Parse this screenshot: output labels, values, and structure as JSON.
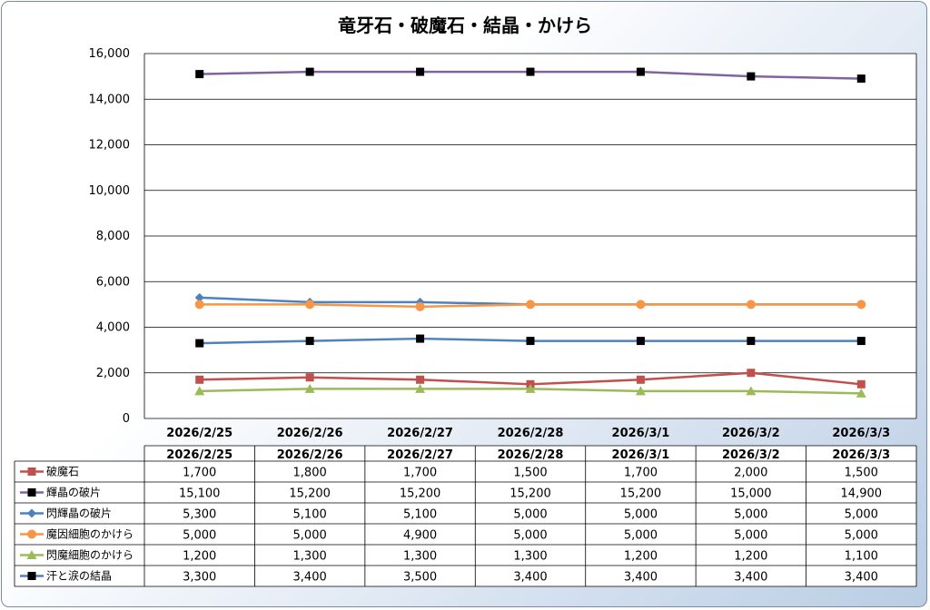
{
  "chart_data": {
    "type": "line",
    "title": "竜牙石・破魔石・結晶・かけら",
    "categories": [
      "2026/2/25",
      "2026/2/26",
      "2026/2/27",
      "2026/2/28",
      "2026/3/1",
      "2026/3/2",
      "2026/3/3"
    ],
    "ylim": [
      0,
      16000
    ],
    "yticks": [
      0,
      2000,
      4000,
      6000,
      8000,
      10000,
      12000,
      14000,
      16000
    ],
    "ytick_labels": [
      "0",
      "2,000",
      "4,000",
      "6,000",
      "8,000",
      "10,000",
      "12,000",
      "14,000",
      "16,000"
    ],
    "grid": true,
    "legend": "data-table",
    "series": [
      {
        "name": "破魔石",
        "color": "#c0504d",
        "marker": "square",
        "values": [
          1700,
          1800,
          1700,
          1500,
          1700,
          2000,
          1500
        ],
        "labels": [
          "1,700",
          "1,800",
          "1,700",
          "1,500",
          "1,700",
          "2,000",
          "1,500"
        ]
      },
      {
        "name": "輝晶の破片",
        "color": "#8064a2",
        "marker": "square",
        "marker_color": "#000000",
        "values": [
          15100,
          15200,
          15200,
          15200,
          15200,
          15000,
          14900
        ],
        "labels": [
          "15,100",
          "15,200",
          "15,200",
          "15,200",
          "15,200",
          "15,000",
          "14,900"
        ]
      },
      {
        "name": "閃輝晶の破片",
        "color": "#4f81bd",
        "marker": "diamond",
        "values": [
          5300,
          5100,
          5100,
          5000,
          5000,
          5000,
          5000
        ],
        "labels": [
          "5,300",
          "5,100",
          "5,100",
          "5,000",
          "5,000",
          "5,000",
          "5,000"
        ]
      },
      {
        "name": "魔因細胞のかけら",
        "color": "#f79646",
        "marker": "circle",
        "values": [
          5000,
          5000,
          4900,
          5000,
          5000,
          5000,
          5000
        ],
        "labels": [
          "5,000",
          "5,000",
          "4,900",
          "5,000",
          "5,000",
          "5,000",
          "5,000"
        ]
      },
      {
        "name": "閃魔細胞のかけら",
        "color": "#9bbb59",
        "marker": "triangle",
        "values": [
          1200,
          1300,
          1300,
          1300,
          1200,
          1200,
          1100
        ],
        "labels": [
          "1,200",
          "1,300",
          "1,300",
          "1,300",
          "1,200",
          "1,200",
          "1,100"
        ]
      },
      {
        "name": "汗と涙の結晶",
        "color": "#4f81bd",
        "marker": "square",
        "marker_color": "#000000",
        "values": [
          3300,
          3400,
          3500,
          3400,
          3400,
          3400,
          3400
        ],
        "labels": [
          "3,300",
          "3,400",
          "3,500",
          "3,400",
          "3,400",
          "3,400",
          "3,400"
        ]
      }
    ]
  }
}
